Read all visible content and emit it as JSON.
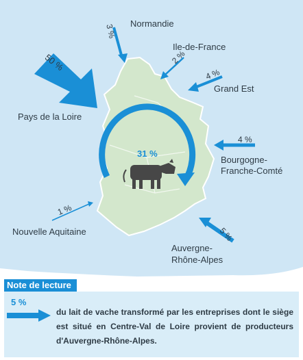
{
  "map": {
    "center_region_value": "31 %",
    "flows": [
      {
        "region": "Normandie",
        "value": "3 %"
      },
      {
        "region": "Ile-de-France",
        "value": "2 %"
      },
      {
        "region": "Grand Est",
        "value": "4 %"
      },
      {
        "region": "Pays de la Loire",
        "value": "50 %"
      },
      {
        "region": "Bourgogne-Franche-Comté",
        "region_line1": "Bourgogne-",
        "region_line2": "Franche-Comté",
        "value": "4 %"
      },
      {
        "region": "Nouvelle Aquitaine",
        "value": "1 %"
      },
      {
        "region": "Auvergne-Rhône-Alpes",
        "region_line1": "Auvergne-",
        "region_line2": "Rhône-Alpes",
        "value": "5 %"
      }
    ],
    "colors": {
      "arrow": "#1a8fd6",
      "region_fill": "#d3e7cc",
      "region_outline": "#ffffff",
      "background": "#cfe6f5",
      "cow": "#4a4a4a"
    }
  },
  "note": {
    "heading": "Note de lecture",
    "value": "5 %",
    "text": "du lait de vache transformé par les entreprises dont le siège est situé en Centre-Val de Loire provient de producteurs d'Auvergne-Rhône-Alpes."
  }
}
